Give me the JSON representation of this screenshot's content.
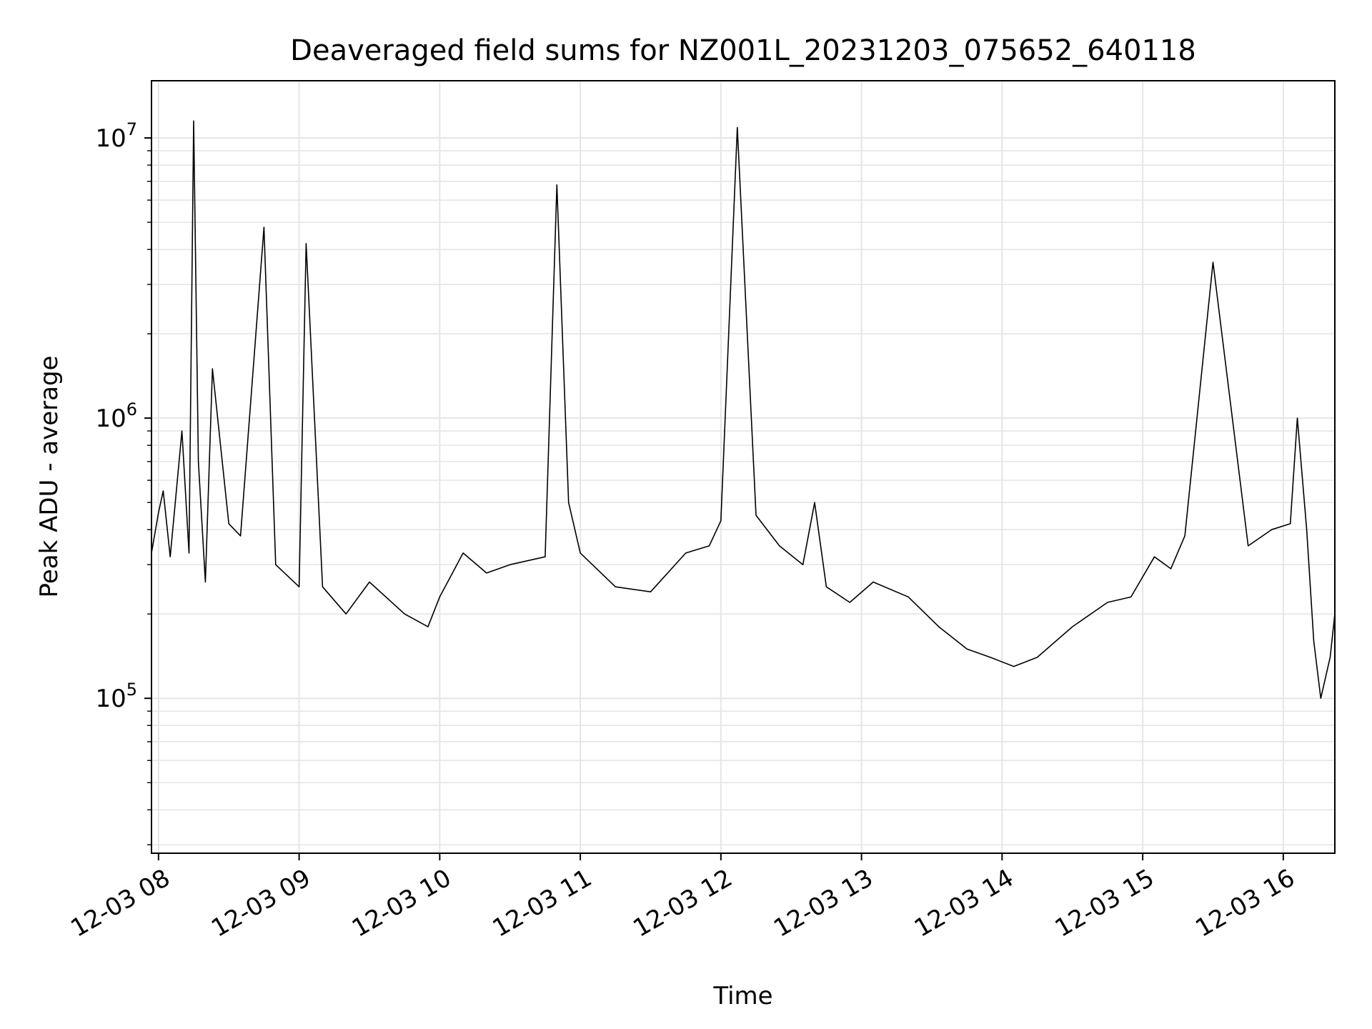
{
  "chart_data": {
    "type": "line",
    "title": "Deaveraged field sums for NZ001L_20231203_075652_640118",
    "xlabel": "Time",
    "ylabel": "Peak ADU - average",
    "y_scale": "log",
    "ylim": [
      28000,
      16000000
    ],
    "xlim": [
      "2023-12-03 07:57",
      "2023-12-03 16:22"
    ],
    "grid": true,
    "line_color": "#000000",
    "grid_color": "#e5e5e5",
    "x_ticks": [
      {
        "value": "2023-12-03 08:00",
        "label": "12-03 08"
      },
      {
        "value": "2023-12-03 09:00",
        "label": "12-03 09"
      },
      {
        "value": "2023-12-03 10:00",
        "label": "12-03 10"
      },
      {
        "value": "2023-12-03 11:00",
        "label": "12-03 11"
      },
      {
        "value": "2023-12-03 12:00",
        "label": "12-03 12"
      },
      {
        "value": "2023-12-03 13:00",
        "label": "12-03 13"
      },
      {
        "value": "2023-12-03 14:00",
        "label": "12-03 14"
      },
      {
        "value": "2023-12-03 15:00",
        "label": "12-03 15"
      },
      {
        "value": "2023-12-03 16:00",
        "label": "12-03 16"
      }
    ],
    "y_ticks": [
      {
        "value": 100000,
        "mantissa": "10",
        "exponent": "5"
      },
      {
        "value": 1000000,
        "mantissa": "10",
        "exponent": "6"
      },
      {
        "value": 10000000,
        "mantissa": "10",
        "exponent": "7"
      }
    ],
    "series": [
      {
        "x": [
          "2023-12-03 07:57",
          "2023-12-03 08:00",
          "2023-12-03 08:02",
          "2023-12-03 08:05",
          "2023-12-03 08:10",
          "2023-12-03 08:13",
          "2023-12-03 08:15",
          "2023-12-03 08:17",
          "2023-12-03 08:20",
          "2023-12-03 08:23",
          "2023-12-03 08:30",
          "2023-12-03 08:35",
          "2023-12-03 08:45",
          "2023-12-03 08:50",
          "2023-12-03 09:00",
          "2023-12-03 09:03",
          "2023-12-03 09:10",
          "2023-12-03 09:20",
          "2023-12-03 09:30",
          "2023-12-03 09:45",
          "2023-12-03 09:55",
          "2023-12-03 10:00",
          "2023-12-03 10:10",
          "2023-12-03 10:20",
          "2023-12-03 10:30",
          "2023-12-03 10:45",
          "2023-12-03 10:50",
          "2023-12-03 10:55",
          "2023-12-03 11:00",
          "2023-12-03 11:15",
          "2023-12-03 11:30",
          "2023-12-03 11:45",
          "2023-12-03 11:55",
          "2023-12-03 12:00",
          "2023-12-03 12:07",
          "2023-12-03 12:15",
          "2023-12-03 12:25",
          "2023-12-03 12:35",
          "2023-12-03 12:40",
          "2023-12-03 12:45",
          "2023-12-03 12:55",
          "2023-12-03 13:05",
          "2023-12-03 13:20",
          "2023-12-03 13:33",
          "2023-12-03 13:45",
          "2023-12-03 13:55",
          "2023-12-03 14:05",
          "2023-12-03 14:15",
          "2023-12-03 14:30",
          "2023-12-03 14:45",
          "2023-12-03 14:55",
          "2023-12-03 15:05",
          "2023-12-03 15:12",
          "2023-12-03 15:18",
          "2023-12-03 15:30",
          "2023-12-03 15:45",
          "2023-12-03 15:55",
          "2023-12-03 16:03",
          "2023-12-03 16:06",
          "2023-12-03 16:10",
          "2023-12-03 16:13",
          "2023-12-03 16:16",
          "2023-12-03 16:20",
          "2023-12-03 16:22"
        ],
        "values": [
          330000,
          460000,
          550000,
          320000,
          900000,
          330000,
          11500000,
          700000,
          260000,
          1500000,
          420000,
          380000,
          4800000,
          300000,
          250000,
          4200000,
          250000,
          200000,
          260000,
          200000,
          180000,
          230000,
          330000,
          280000,
          300000,
          320000,
          6800000,
          500000,
          330000,
          250000,
          240000,
          330000,
          350000,
          430000,
          10900000,
          450000,
          350000,
          300000,
          500000,
          250000,
          220000,
          260000,
          230000,
          180000,
          150000,
          140000,
          130000,
          140000,
          180000,
          220000,
          230000,
          320000,
          290000,
          380000,
          3600000,
          350000,
          400000,
          420000,
          1000000,
          400000,
          160000,
          100000,
          140000,
          200000
        ]
      }
    ]
  }
}
